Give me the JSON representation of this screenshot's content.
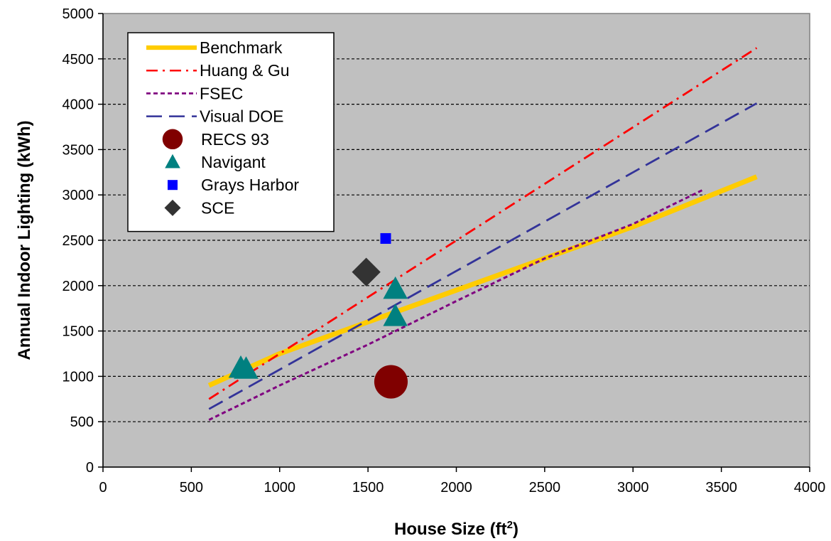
{
  "chart_data": {
    "type": "scatter",
    "title": "",
    "xlabel": "House Size (ft",
    "xlabel_sup": "2",
    "xlabel_end": ")",
    "ylabel": "Annual Indoor Lighting (kWh)",
    "xlim": [
      0,
      4000
    ],
    "ylim": [
      0,
      5000
    ],
    "x_ticks": [
      0,
      500,
      1000,
      1500,
      2000,
      2500,
      3000,
      3500,
      4000
    ],
    "y_ticks": [
      0,
      500,
      1000,
      1500,
      2000,
      2500,
      3000,
      3500,
      4000,
      4500,
      5000
    ],
    "grid": "horizontal-dashed",
    "legend_position": "top-left",
    "plot_background": "#c0c0c0",
    "series": [
      {
        "name": "Benchmark",
        "kind": "line",
        "style": "solid-thick",
        "color": "#ffcc00",
        "x": [
          600,
          1000,
          1500,
          2000,
          2500,
          3000,
          3700
        ],
        "y": [
          900,
          1250,
          1600,
          1950,
          2300,
          2650,
          3200
        ]
      },
      {
        "name": "Huang & Gu",
        "kind": "line",
        "style": "dash-dot",
        "color": "#ff0000",
        "x": [
          600,
          3700
        ],
        "y": [
          750,
          4620
        ]
      },
      {
        "name": "FSEC",
        "kind": "line",
        "style": "short-dash",
        "color": "#800080",
        "x": [
          600,
          1000,
          1500,
          2000,
          2500,
          3000,
          3400
        ],
        "y": [
          520,
          900,
          1350,
          1830,
          2300,
          2680,
          3060
        ]
      },
      {
        "name": "Visual DOE",
        "kind": "line",
        "style": "long-dash",
        "color": "#333399",
        "x": [
          600,
          3700
        ],
        "y": [
          640,
          4010
        ]
      },
      {
        "name": "RECS 93",
        "kind": "marker",
        "marker": "circle",
        "color": "#800000",
        "x": [
          1630
        ],
        "y": [
          940
        ]
      },
      {
        "name": "Navigant",
        "kind": "marker",
        "marker": "triangle",
        "color": "#008080",
        "x": [
          780,
          810,
          1655,
          1655
        ],
        "y": [
          1090,
          1080,
          1960,
          1660
        ]
      },
      {
        "name": "Grays Harbor",
        "kind": "marker",
        "marker": "square",
        "color": "#0000ff",
        "x": [
          1600
        ],
        "y": [
          2520
        ]
      },
      {
        "name": "SCE",
        "kind": "marker",
        "marker": "diamond",
        "color": "#333333",
        "x": [
          1490
        ],
        "y": [
          2150
        ]
      }
    ]
  }
}
